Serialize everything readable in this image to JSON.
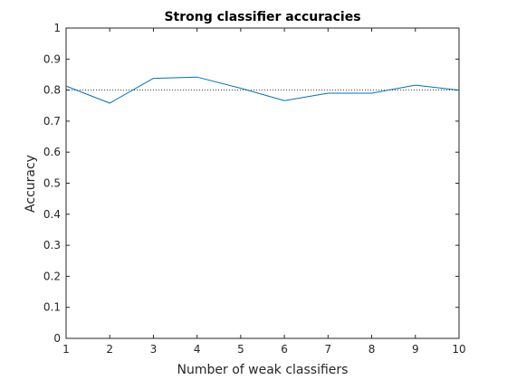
{
  "chart_data": {
    "type": "line",
    "title": "Strong classifier accuracies",
    "xlabel": "Number of weak classifiers",
    "ylabel": "Accuracy",
    "x": [
      1,
      2,
      3,
      4,
      5,
      6,
      7,
      8,
      9,
      10
    ],
    "xlim": [
      1,
      10
    ],
    "ylim": [
      0,
      1
    ],
    "xticks": [
      "1",
      "2",
      "3",
      "4",
      "5",
      "6",
      "7",
      "8",
      "9",
      "10"
    ],
    "yticks": [
      "0",
      "0.1",
      "0.2",
      "0.3",
      "0.4",
      "0.5",
      "0.6",
      "0.7",
      "0.8",
      "0.9",
      "1"
    ],
    "grid": false,
    "series": [
      {
        "values": [
          0.813,
          0.758,
          0.838,
          0.842,
          0.806,
          0.766,
          0.79,
          0.79,
          0.816,
          0.8
        ],
        "color": "#0072BD",
        "style": "solid"
      }
    ],
    "reference_line": {
      "y": 0.8,
      "style": "dotted",
      "color": "#000000"
    }
  }
}
